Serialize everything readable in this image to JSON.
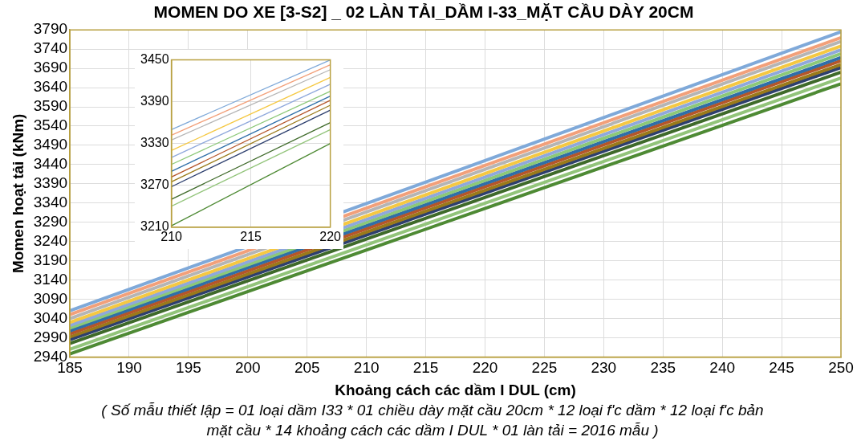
{
  "chart_data": [
    {
      "type": "line",
      "title": "MOMEN DO XE [3-S2] _ 02 LÀN TẢI_DẦM I-33_MẶT CẦU DÀY 20CM",
      "xlabel": "Khoảng cách các dầm I DUL (cm)",
      "ylabel": "Momen hoạt tải (kNm)",
      "annotations": [
        "( Số mẫu thiết lập = 01 loại dầm I33 * 01 chiều dày mặt cầu 20cm * 12 loại f'c dầm * 12 loại f'c bản mặt cầu * 14 khoảng cách các dầm I DUL * 01 làn tải = 2016 mẫu )"
      ],
      "xlim": [
        185,
        250
      ],
      "xticks": [
        185,
        190,
        195,
        200,
        205,
        210,
        215,
        220,
        225,
        230,
        235,
        240,
        245,
        250
      ],
      "ylim": [
        2940,
        3790
      ],
      "yticks": [
        2940,
        2990,
        3040,
        3090,
        3140,
        3190,
        3240,
        3290,
        3340,
        3390,
        3440,
        3490,
        3540,
        3590,
        3640,
        3690,
        3740,
        3790
      ],
      "grid": true,
      "legend": false,
      "marker": "none",
      "line_style": "solid",
      "series": [
        {
          "color": "#7fa9d9",
          "x": [
            185,
            250
          ],
          "values": [
            3060,
            3785
          ]
        },
        {
          "color": "#f2a07a",
          "x": [
            185,
            250
          ],
          "values": [
            3050,
            3770
          ]
        },
        {
          "color": "#b5b5b5",
          "x": [
            185,
            250
          ],
          "values": [
            3040,
            3760
          ]
        },
        {
          "color": "#f5c842",
          "x": [
            185,
            250
          ],
          "values": [
            3030,
            3748
          ]
        },
        {
          "color": "#8fa8dc",
          "x": [
            185,
            250
          ],
          "values": [
            3022,
            3738
          ]
        },
        {
          "color": "#8cc878",
          "x": [
            185,
            250
          ],
          "values": [
            3015,
            3728
          ]
        },
        {
          "color": "#2f6ea8",
          "x": [
            185,
            250
          ],
          "values": [
            3008,
            3718
          ]
        },
        {
          "color": "#b5562a",
          "x": [
            185,
            250
          ],
          "values": [
            3000,
            3710
          ]
        },
        {
          "color": "#9a7a1a",
          "x": [
            185,
            250
          ],
          "values": [
            2992,
            3700
          ]
        },
        {
          "color": "#2d3f6e",
          "x": [
            185,
            250
          ],
          "values": [
            2985,
            3692
          ]
        },
        {
          "color": "#3f6a2a",
          "x": [
            185,
            250
          ],
          "values": [
            2975,
            3680
          ]
        },
        {
          "color": "#92c47a",
          "x": [
            185,
            250
          ],
          "values": [
            2960,
            3665
          ]
        },
        {
          "color": "#4e8a34",
          "x": [
            185,
            250
          ],
          "values": [
            2948,
            3650
          ]
        }
      ]
    },
    {
      "type": "line",
      "xlim": [
        210,
        220
      ],
      "xticks": [
        210,
        215,
        220
      ],
      "ylim": [
        3210,
        3450
      ],
      "yticks": [
        3210,
        3270,
        3330,
        3390,
        3450
      ],
      "grid": true,
      "legend": false,
      "marker": "none",
      "line_style": "solid",
      "series": [
        {
          "color": "#7fa9d9",
          "x": [
            210,
            220
          ],
          "values": [
            3350,
            3450
          ]
        },
        {
          "color": "#f2a07a",
          "x": [
            210,
            220
          ],
          "values": [
            3342,
            3443
          ]
        },
        {
          "color": "#b5b5b5",
          "x": [
            210,
            220
          ],
          "values": [
            3335,
            3436
          ]
        },
        {
          "color": "#f5c842",
          "x": [
            210,
            220
          ],
          "values": [
            3320,
            3425
          ]
        },
        {
          "color": "#8fa8dc",
          "x": [
            210,
            220
          ],
          "values": [
            3310,
            3415
          ]
        },
        {
          "color": "#8cc878",
          "x": [
            210,
            220
          ],
          "values": [
            3300,
            3405
          ]
        },
        {
          "color": "#2f6ea8",
          "x": [
            210,
            220
          ],
          "values": [
            3290,
            3398
          ]
        },
        {
          "color": "#b5562a",
          "x": [
            210,
            220
          ],
          "values": [
            3282,
            3392
          ]
        },
        {
          "color": "#9a7a1a",
          "x": [
            210,
            220
          ],
          "values": [
            3275,
            3385
          ]
        },
        {
          "color": "#2d3f6e",
          "x": [
            210,
            220
          ],
          "values": [
            3268,
            3378
          ]
        },
        {
          "color": "#3f6a2a",
          "x": [
            210,
            220
          ],
          "values": [
            3250,
            3360
          ]
        },
        {
          "color": "#92c47a",
          "x": [
            210,
            220
          ],
          "values": [
            3240,
            3350
          ]
        },
        {
          "color": "#4e8a34",
          "x": [
            210,
            220
          ],
          "values": [
            3212,
            3330
          ]
        }
      ]
    }
  ]
}
